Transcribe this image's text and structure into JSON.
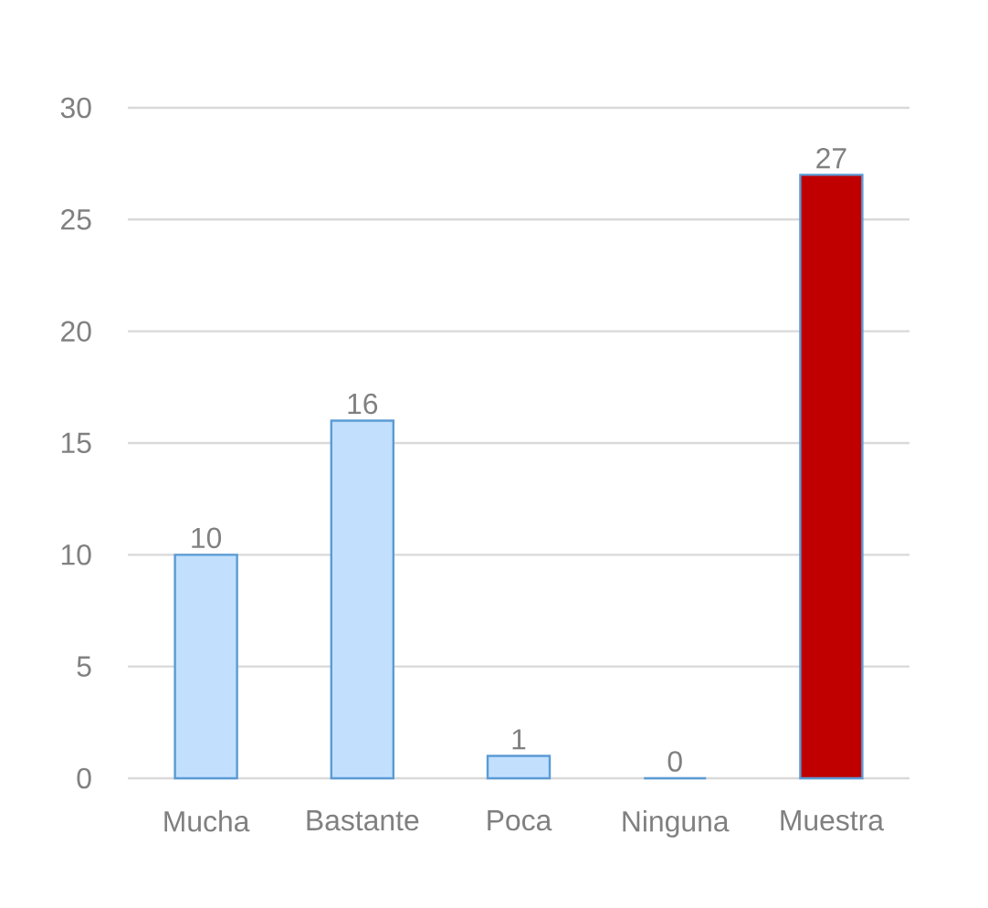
{
  "chart_data": {
    "type": "bar",
    "categories": [
      "Mucha",
      "Bastante",
      "Poca",
      "Ninguna",
      "Muestra"
    ],
    "values": [
      10,
      16,
      1,
      0,
      27
    ],
    "colors": [
      "#c2e0fd",
      "#c2e0fd",
      "#c2e0fd",
      "#c2e0fd",
      "#c00000"
    ],
    "ylim": [
      0,
      30
    ],
    "yticks": [
      0,
      5,
      10,
      15,
      20,
      25,
      30
    ],
    "grid": "y",
    "data_labels": true
  }
}
